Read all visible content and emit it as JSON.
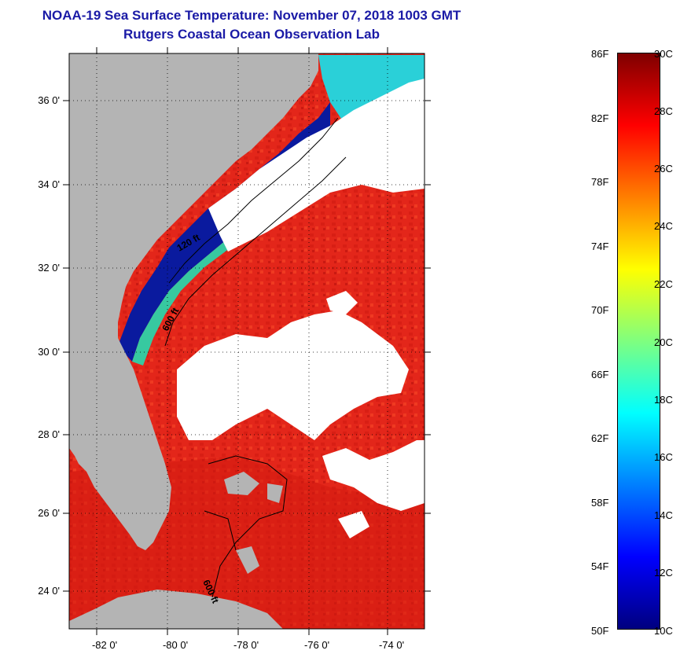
{
  "title": {
    "line1": "NOAA-19 Sea Surface Temperature:  November 07, 2018 1003 GMT",
    "line2": "Rutgers Coastal Ocean Observation Lab"
  },
  "map": {
    "lat_labels": [
      "36 0'",
      "34 0'",
      "32 0'",
      "30 0'",
      "28 0'",
      "26 0'",
      "24 0'"
    ],
    "lon_labels": [
      "-82 0'",
      "-80 0'",
      "-78 0'",
      "-76 0'",
      "-74 0'"
    ],
    "contour_labels": [
      "120 ft",
      "600 ft",
      "600 ft"
    ],
    "colors": {
      "land": "#b4b4b4",
      "cloud": "#ffffff",
      "warm_sst": "#e8261a",
      "cold_coastal": "#0a1a9e",
      "cool_water": "#2ad0d8"
    }
  },
  "colorbar": {
    "f_labels": [
      "86F",
      "82F",
      "78F",
      "74F",
      "70F",
      "66F",
      "62F",
      "58F",
      "54F",
      "50F"
    ],
    "c_labels": [
      "30C",
      "28C",
      "26C",
      "24C",
      "22C",
      "20C",
      "18C",
      "16C",
      "14C",
      "12C",
      "10C"
    ],
    "f_range": [
      50,
      86
    ],
    "c_range": [
      10,
      30
    ],
    "colormap": [
      "#00007f",
      "#0000ff",
      "#007fff",
      "#00ffff",
      "#7fff7f",
      "#ffff00",
      "#ff7f00",
      "#ff0000",
      "#7f0000"
    ]
  }
}
